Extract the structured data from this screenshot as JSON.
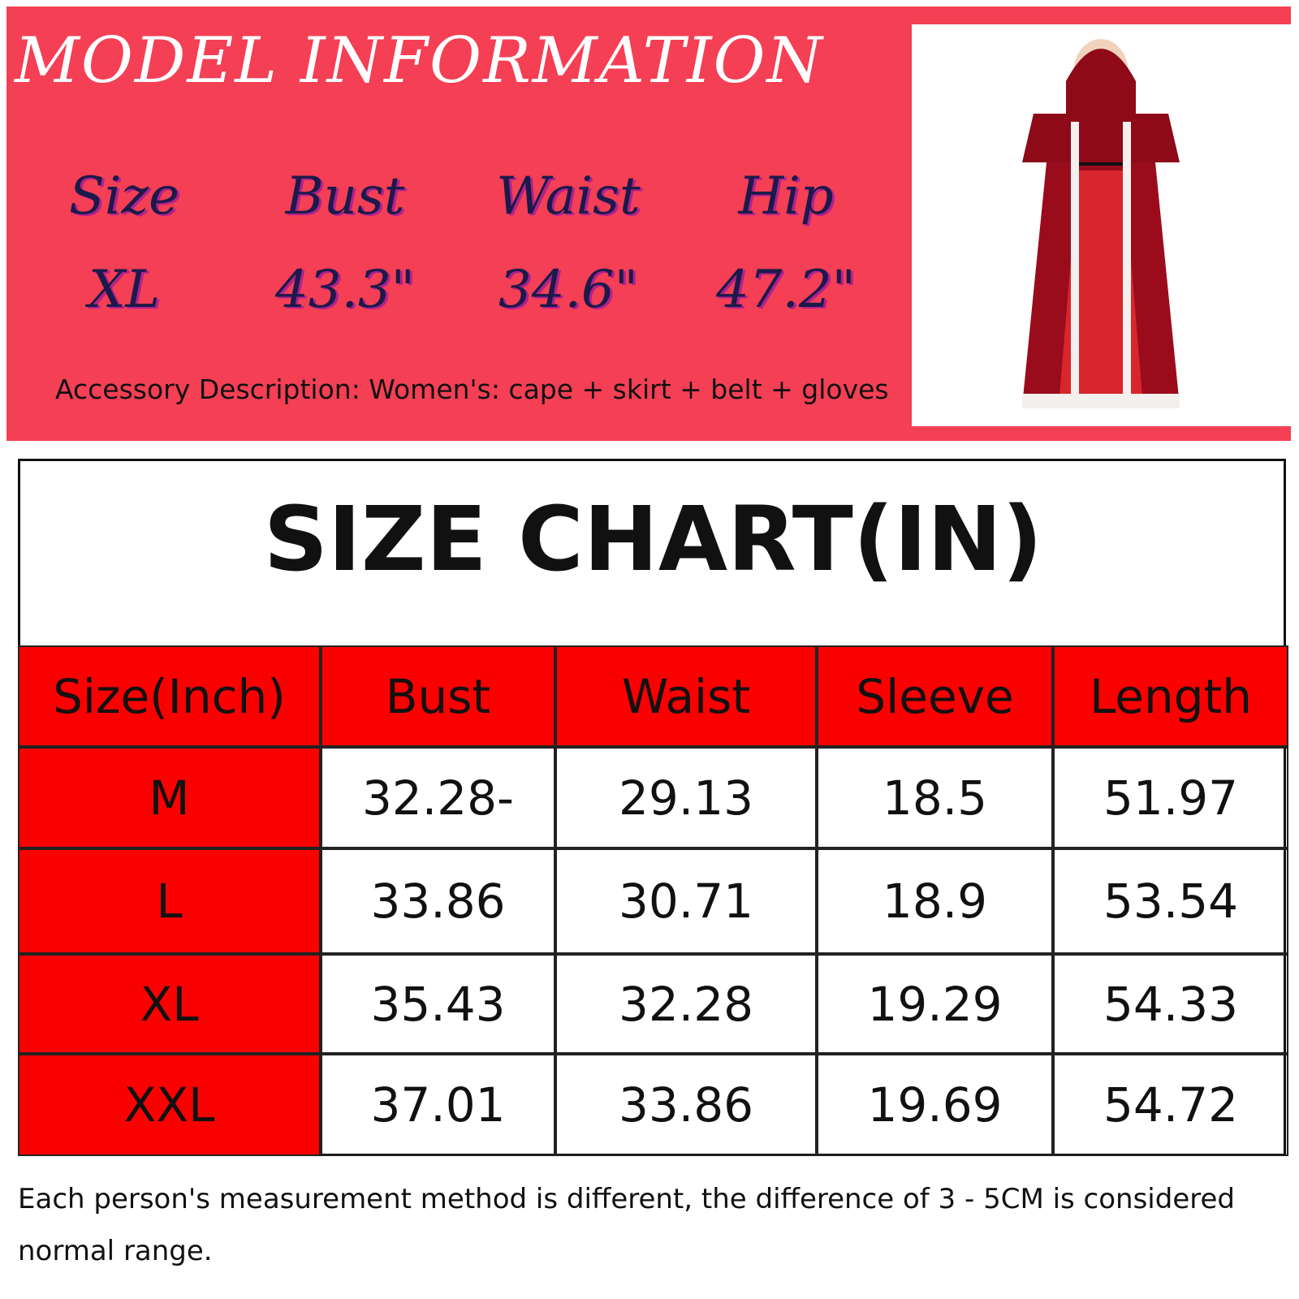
{
  "model_info": {
    "title": "MODEL INFORMATION",
    "headers": [
      "Size",
      "Bust",
      "Waist",
      "Hip"
    ],
    "values": [
      "XL",
      "43.3\"",
      "34.6\"",
      "47.2\""
    ],
    "accessory": "Accessory Description: Women's: cape + skirt + belt + gloves"
  },
  "size_chart": {
    "title": "SIZE CHART(IN)",
    "header": [
      "Size(Inch)",
      "Bust",
      "Waist",
      "Sleeve",
      "Length"
    ],
    "rows": [
      [
        "M",
        "32.28-",
        "29.13",
        "18.5",
        "51.97"
      ],
      [
        "L",
        "33.86",
        "30.71",
        "18.9",
        "53.54"
      ],
      [
        "XL",
        "35.43",
        "32.28",
        "19.29",
        "54.33"
      ],
      [
        "XXL",
        "37.01",
        "33.86",
        "19.69",
        "54.72"
      ]
    ]
  },
  "note": "Each person's measurement method is different, the difference of 3 - 5CM is considered normal range."
}
